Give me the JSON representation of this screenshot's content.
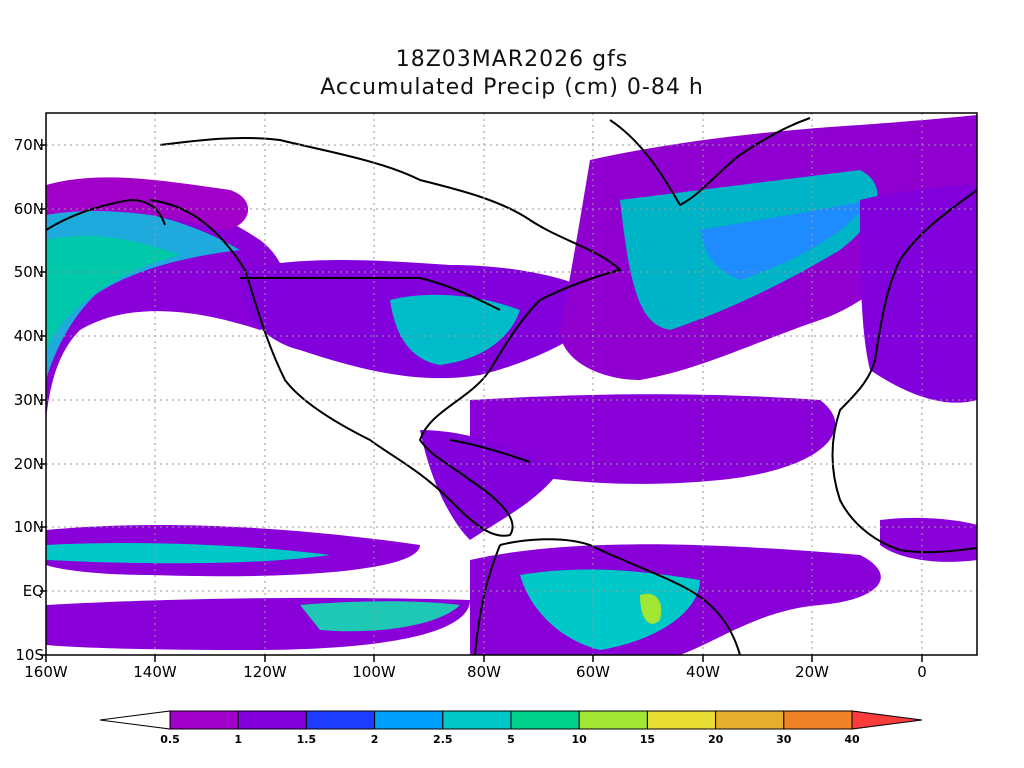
{
  "header": {
    "line1": "18Z03MAR2026 gfs",
    "line2": "Accumulated Precip (cm) 0-84 h"
  },
  "map": {
    "lat_labels": [
      "70N",
      "60N",
      "50N",
      "40N",
      "30N",
      "20N",
      "10N",
      "EQ",
      "10S"
    ],
    "lon_labels": [
      "160W",
      "140W",
      "120W",
      "100W",
      "80W",
      "60W",
      "40W",
      "20W",
      "0"
    ],
    "extent": {
      "lon_min": -160,
      "lon_max": 10,
      "lat_min": -10,
      "lat_max": 75
    }
  },
  "colorbar": {
    "levels": [
      "0.5",
      "1",
      "1.5",
      "2",
      "2.5",
      "5",
      "10",
      "15",
      "20",
      "30",
      "40"
    ],
    "colors": [
      "#ffffff",
      "#a000c8",
      "#8200dc",
      "#1e3cff",
      "#00a0ff",
      "#00c8c8",
      "#00d28c",
      "#a0e632",
      "#e6dc32",
      "#e6af2d",
      "#f08228",
      "#fa3c3c"
    ]
  },
  "chart_data": {
    "type": "heatmap",
    "title": "18Z03MAR2026 gfs",
    "subtitle": "Accumulated Precip (cm) 0-84 h",
    "x_range": [
      -160,
      10
    ],
    "y_range": [
      -10,
      75
    ],
    "contour_levels_cm": [
      0.5,
      1,
      1.5,
      2,
      2.5,
      5,
      10,
      15,
      20,
      30,
      40
    ]
  }
}
